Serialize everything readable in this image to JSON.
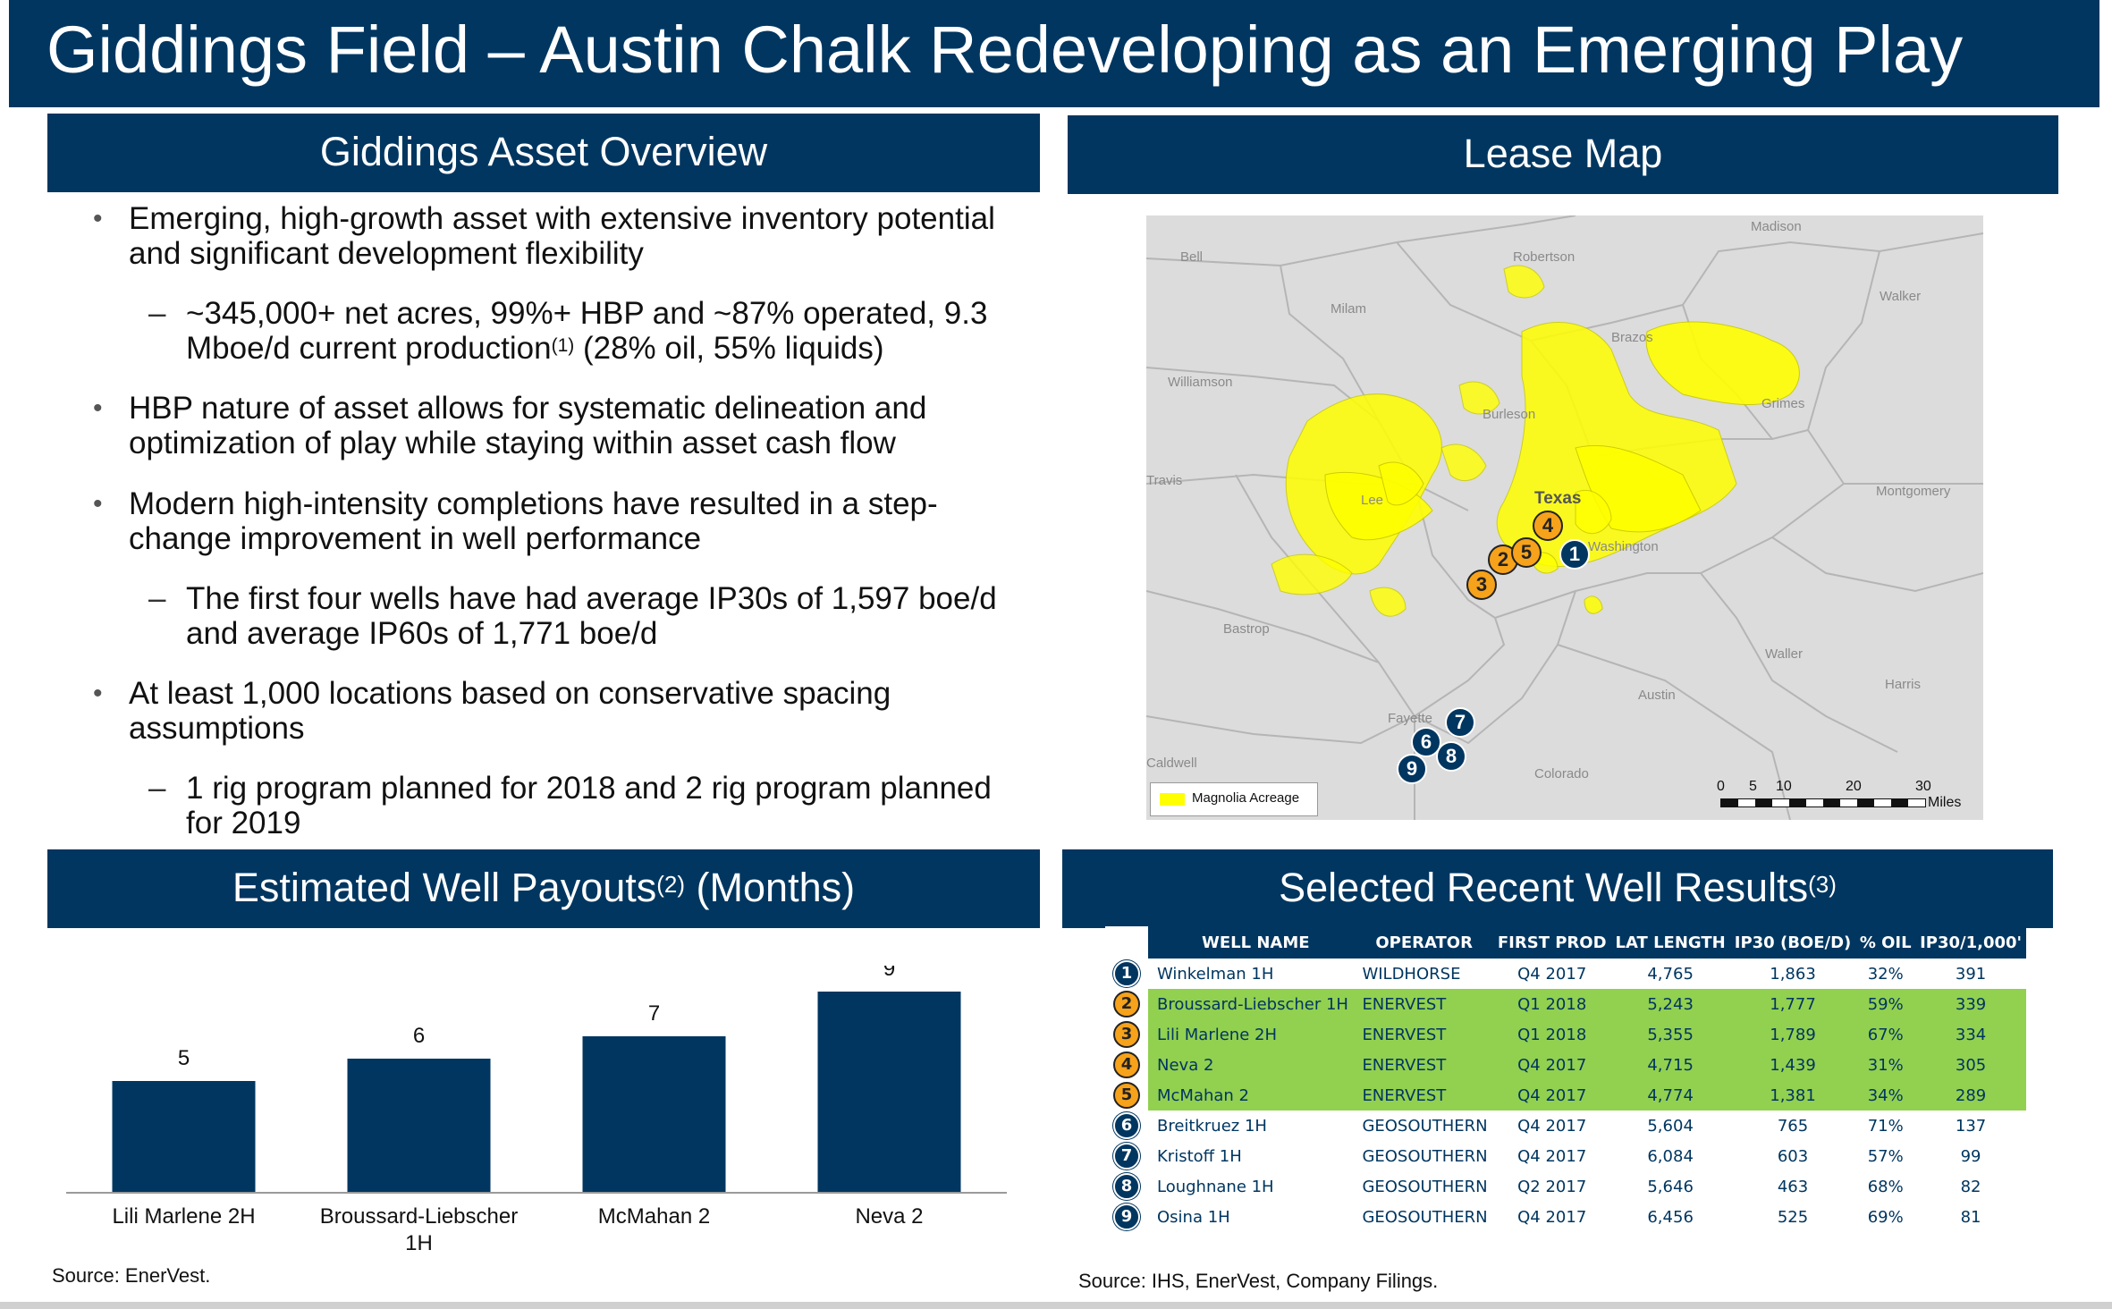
{
  "title": "Giddings Field – Austin Chalk Redeveloping as an Emerging Play",
  "overview": {
    "header": "Giddings Asset Overview",
    "b1": "Emerging, high-growth asset with extensive inventory potential and significant development flexibility",
    "b1_sub_a": "~345,000+ net acres, 99%+ HBP and ~87% operated, 9.3 Mboe/d current production",
    "b1_sub_sup": "(1)",
    "b1_sub_b": " (28% oil, 55% liquids)",
    "b2": "HBP nature of asset allows for systematic delineation and optimization of play while staying within asset cash flow",
    "b3": "Modern high-intensity completions have resulted in a step-change improvement in well performance",
    "b3_sub": "The first four wells have had average IP30s of 1,597 boe/d and average IP60s of 1,771 boe/d",
    "b4": "At least 1,000 locations based on conservative spacing assumptions",
    "b4_sub": "1 rig program planned for 2018 and 2 rig program planned for 2019",
    "bullet": "•",
    "dash": "–"
  },
  "lease_map": {
    "header": "Lease Map",
    "counties": {
      "madison": "Madison",
      "bell": "Bell",
      "robertson": "Robertson",
      "walker": "Walker",
      "milam": "Milam",
      "brazos": "Brazos",
      "williamson": "Williamson",
      "grimes": "Grimes",
      "burleson": "Burleson",
      "travis": "Travis",
      "montgomery": "Montgomery",
      "lee": "Lee",
      "texas": "Texas",
      "washington": "Washington",
      "bastrop": "Bastrop",
      "waller": "Waller",
      "harris": "Harris",
      "austin": "Austin",
      "fayette": "Fayette",
      "caldwell": "Caldwell",
      "colorado": "Colorado"
    },
    "legend": "Magnolia Acreage",
    "scale_ticks": [
      "0",
      "5",
      "10",
      "20",
      "30"
    ],
    "scale_unit": "Miles",
    "acreage_color": "#ffff00",
    "wells": [
      {
        "n": "4",
        "style": "orange"
      },
      {
        "n": "2",
        "style": "orange"
      },
      {
        "n": "5",
        "style": "orange"
      },
      {
        "n": "1",
        "style": "navy"
      },
      {
        "n": "3",
        "style": "orange"
      },
      {
        "n": "7",
        "style": "navy"
      },
      {
        "n": "6",
        "style": "navy"
      },
      {
        "n": "8",
        "style": "navy"
      },
      {
        "n": "9",
        "style": "navy"
      }
    ]
  },
  "payouts": {
    "header_a": "Estimated Well Payouts",
    "header_sup": "(2)",
    "header_b": " (Months)",
    "source": "Source: EnerVest."
  },
  "chart_data": {
    "type": "bar",
    "title": "Estimated Well Payouts (2) (Months)",
    "categories": [
      "Lili Marlene 2H",
      "Broussard-Liebscher 1H",
      "McMahan 2",
      "Neva 2"
    ],
    "values": [
      5,
      6,
      7,
      9
    ],
    "ylim": [
      0,
      10
    ],
    "bar_color": "#003660",
    "grid": false
  },
  "results": {
    "header_a": "Selected Recent Well Results",
    "header_sup": "(3)",
    "columns": [
      "WELL NAME",
      "OPERATOR",
      "FIRST PROD",
      "LAT LENGTH",
      "IP30 (BOE/D)",
      "% OIL",
      "IP30/1,000'"
    ],
    "rows": [
      {
        "n": "1",
        "style": "navy",
        "hl": false,
        "name": "Winkelman 1H",
        "operator": "WILDHORSE",
        "first_prod": "Q4 2017",
        "lat": "4,765",
        "ip30": "1,863",
        "oil": "32%",
        "ip30k": "391"
      },
      {
        "n": "2",
        "style": "orange",
        "hl": true,
        "name": "Broussard-Liebscher 1H",
        "operator": "ENERVEST",
        "first_prod": "Q1 2018",
        "lat": "5,243",
        "ip30": "1,777",
        "oil": "59%",
        "ip30k": "339"
      },
      {
        "n": "3",
        "style": "orange",
        "hl": true,
        "name": "Lili Marlene 2H",
        "operator": "ENERVEST",
        "first_prod": "Q1 2018",
        "lat": "5,355",
        "ip30": "1,789",
        "oil": "67%",
        "ip30k": "334"
      },
      {
        "n": "4",
        "style": "orange",
        "hl": true,
        "name": "Neva 2",
        "operator": "ENERVEST",
        "first_prod": "Q4 2017",
        "lat": "4,715",
        "ip30": "1,439",
        "oil": "31%",
        "ip30k": "305"
      },
      {
        "n": "5",
        "style": "orange",
        "hl": true,
        "name": "McMahan 2",
        "operator": "ENERVEST",
        "first_prod": "Q4 2017",
        "lat": "4,774",
        "ip30": "1,381",
        "oil": "34%",
        "ip30k": "289"
      },
      {
        "n": "6",
        "style": "navy",
        "hl": false,
        "name": "Breitkruez 1H",
        "operator": "GEOSOUTHERN",
        "first_prod": "Q4 2017",
        "lat": "5,604",
        "ip30": "765",
        "oil": "71%",
        "ip30k": "137"
      },
      {
        "n": "7",
        "style": "navy",
        "hl": false,
        "name": "Kristoff 1H",
        "operator": "GEOSOUTHERN",
        "first_prod": "Q4 2017",
        "lat": "6,084",
        "ip30": "603",
        "oil": "57%",
        "ip30k": "99"
      },
      {
        "n": "8",
        "style": "navy",
        "hl": false,
        "name": "Loughnane 1H",
        "operator": "GEOSOUTHERN",
        "first_prod": "Q2 2017",
        "lat": "5,646",
        "ip30": "463",
        "oil": "68%",
        "ip30k": "82"
      },
      {
        "n": "9",
        "style": "navy",
        "hl": false,
        "name": "Osina 1H",
        "operator": "GEOSOUTHERN",
        "first_prod": "Q4 2017",
        "lat": "6,456",
        "ip30": "525",
        "oil": "69%",
        "ip30k": "81"
      }
    ],
    "highlight_color": "#92d050",
    "source": "Source: IHS, EnerVest, Company Filings."
  },
  "colors": {
    "navy": "#003660",
    "orange": "#f6a21a",
    "green": "#92d050"
  }
}
